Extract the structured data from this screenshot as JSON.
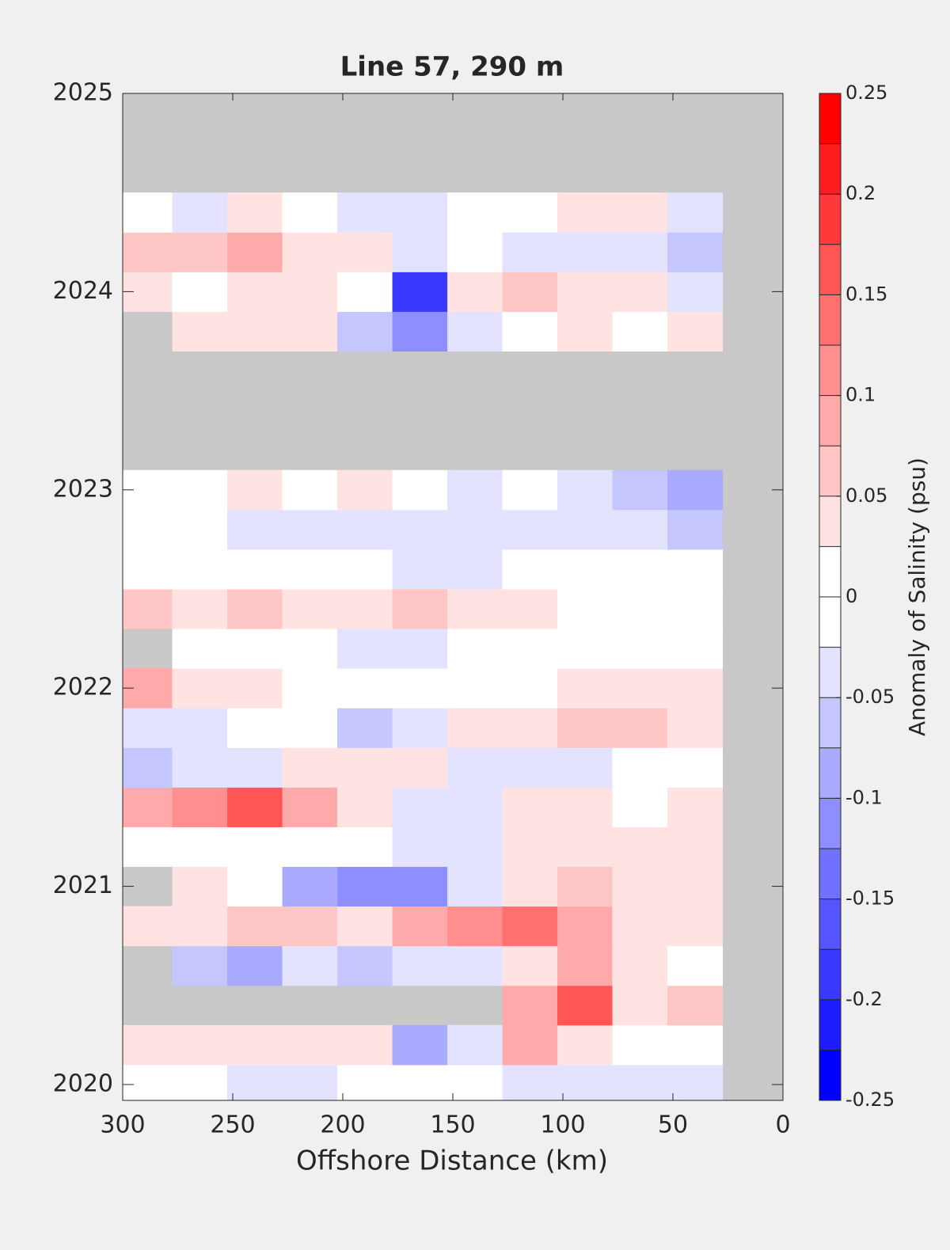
{
  "chart_data": {
    "type": "contour",
    "title": "Line 57, 290 m",
    "x_label": "Offshore Distance (km)",
    "colorbar_label": "Anomaly of Salinity (psu)",
    "x": [
      290,
      265,
      240,
      215,
      190,
      165,
      140,
      115,
      90,
      65,
      40
    ],
    "y": [
      2020.0,
      2020.2,
      2020.4,
      2020.6,
      2020.8,
      2021.0,
      2021.2,
      2021.4,
      2021.6,
      2021.8,
      2022.0,
      2022.2,
      2022.4,
      2022.6,
      2022.8,
      2023.0,
      2023.2,
      2023.4,
      2023.6,
      2023.8,
      2024.0,
      2024.2,
      2024.4
    ],
    "z": [
      [
        0,
        0,
        -0.03,
        -0.03,
        0,
        0,
        0,
        -0.03,
        -0.04,
        -0.04,
        -0.04
      ],
      [
        0.03,
        0.03,
        0.05,
        0.04,
        0.05,
        -0.08,
        -0.05,
        0.1,
        0.04,
        0.02,
        0
      ],
      [
        null,
        null,
        null,
        null,
        null,
        null,
        null,
        0.1,
        0.15,
        0.03,
        0.07
      ],
      [
        null,
        -0.06,
        -0.09,
        -0.04,
        -0.06,
        -0.04,
        -0.04,
        0.03,
        0.08,
        0.03,
        0
      ],
      [
        0.03,
        0.04,
        0.06,
        0.07,
        0.04,
        0.08,
        0.12,
        0.14,
        0.08,
        0.03,
        0.03
      ],
      [
        null,
        0.03,
        -0.02,
        -0.08,
        -0.1,
        -0.1,
        -0.05,
        0.05,
        0.07,
        0.03,
        0.03
      ],
      [
        0.02,
        0,
        0,
        0,
        0,
        -0.03,
        -0.04,
        0.03,
        0.05,
        0.03,
        0.03
      ],
      [
        0.08,
        0.12,
        0.17,
        0.1,
        0.03,
        -0.04,
        -0.05,
        0.03,
        0.05,
        0,
        0.03
      ],
      [
        -0.06,
        -0.05,
        -0.05,
        0.03,
        0.05,
        0.05,
        -0.04,
        -0.04,
        -0.04,
        0,
        0
      ],
      [
        -0.05,
        -0.03,
        0,
        0,
        -0.06,
        -0.04,
        0.03,
        0.03,
        0.06,
        0.06,
        0.03
      ],
      [
        0.1,
        0.05,
        0.03,
        0.02,
        0,
        0.02,
        0,
        0,
        0.03,
        0.03,
        0.03
      ],
      [
        null,
        0,
        0,
        0,
        -0.03,
        -0.04,
        0,
        0,
        0,
        0,
        0
      ],
      [
        0.07,
        0.05,
        0.06,
        0.05,
        0.05,
        0.07,
        0.03,
        0.03,
        0,
        0.02,
        0
      ],
      [
        0,
        0,
        0,
        -0.02,
        0,
        -0.04,
        -0.04,
        0,
        0,
        0,
        0
      ],
      [
        0,
        0,
        -0.04,
        -0.03,
        -0.03,
        -0.04,
        -0.05,
        -0.04,
        -0.03,
        -0.05,
        -0.06
      ],
      [
        0.02,
        0,
        0.04,
        0,
        0.03,
        -0.02,
        -0.04,
        0,
        -0.04,
        -0.06,
        -0.08
      ],
      [
        null,
        null,
        null,
        null,
        null,
        null,
        null,
        null,
        null,
        null,
        null
      ],
      [
        null,
        null,
        null,
        null,
        null,
        null,
        null,
        null,
        null,
        null,
        null
      ],
      [
        null,
        null,
        null,
        null,
        null,
        null,
        null,
        null,
        null,
        null,
        null
      ],
      [
        null,
        0.04,
        0.05,
        0.03,
        -0.06,
        -0.12,
        -0.04,
        0.02,
        0.03,
        0,
        0.03
      ],
      [
        0.05,
        0,
        0.03,
        0.05,
        0,
        -0.18,
        0.05,
        0.07,
        0.05,
        0.03,
        -0.03
      ],
      [
        0.07,
        0.07,
        0.1,
        0.05,
        0.03,
        -0.04,
        0,
        -0.03,
        -0.05,
        -0.05,
        -0.07
      ],
      [
        0.02,
        -0.04,
        0.03,
        0,
        -0.04,
        -0.04,
        0,
        0,
        0.03,
        0.03,
        -0.03
      ]
    ],
    "xlim": [
      300,
      0
    ],
    "xticks": [
      300,
      250,
      200,
      150,
      100,
      50,
      0
    ],
    "ylim": [
      2019.92,
      2025
    ],
    "yticks": [
      2020,
      2021,
      2022,
      2023,
      2024,
      2025
    ],
    "clim": [
      -0.25,
      0.25
    ],
    "level_step": 0.025,
    "cticks": [
      0.25,
      0.2,
      0.15,
      0.1,
      0.05,
      0,
      -0.05,
      -0.1,
      -0.15,
      -0.2,
      -0.25
    ],
    "negative_color": "#0000ff",
    "positive_color": "#ff0000",
    "missing_color": "#c8c8c8"
  }
}
